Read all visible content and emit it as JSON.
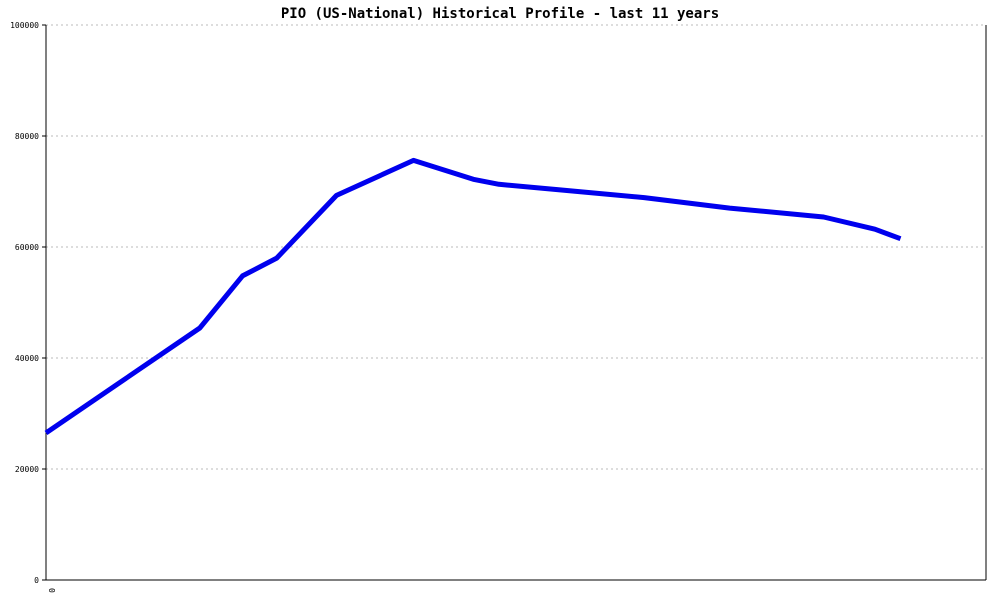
{
  "chart_data": {
    "type": "line",
    "title": "PIO (US-National) Historical Profile - last 11 years",
    "xlabel": "",
    "ylabel": "",
    "x_tick_labels": [
      "0"
    ],
    "y_ticks": [
      0,
      20000,
      40000,
      60000,
      80000,
      100000
    ],
    "y_tick_labels": [
      "0",
      "20000",
      "40000",
      "60000",
      "80000",
      "100000"
    ],
    "ylim": [
      0,
      100000
    ],
    "xlim": [
      0,
      11
    ],
    "grid": true,
    "line_color": "#0000ee",
    "grid_color": "#bbbbbb",
    "axis_color": "#000000",
    "series": [
      {
        "x": [
          0,
          1.8,
          2.3,
          2.7,
          3.4,
          4.3,
          5.0,
          5.3,
          6.0,
          7.0,
          8.0,
          9.1,
          9.7,
          10.0
        ],
        "values": [
          26500,
          45400,
          54800,
          58000,
          69300,
          75600,
          72200,
          71300,
          70300,
          68900,
          67000,
          65400,
          63200,
          61500
        ]
      }
    ]
  }
}
